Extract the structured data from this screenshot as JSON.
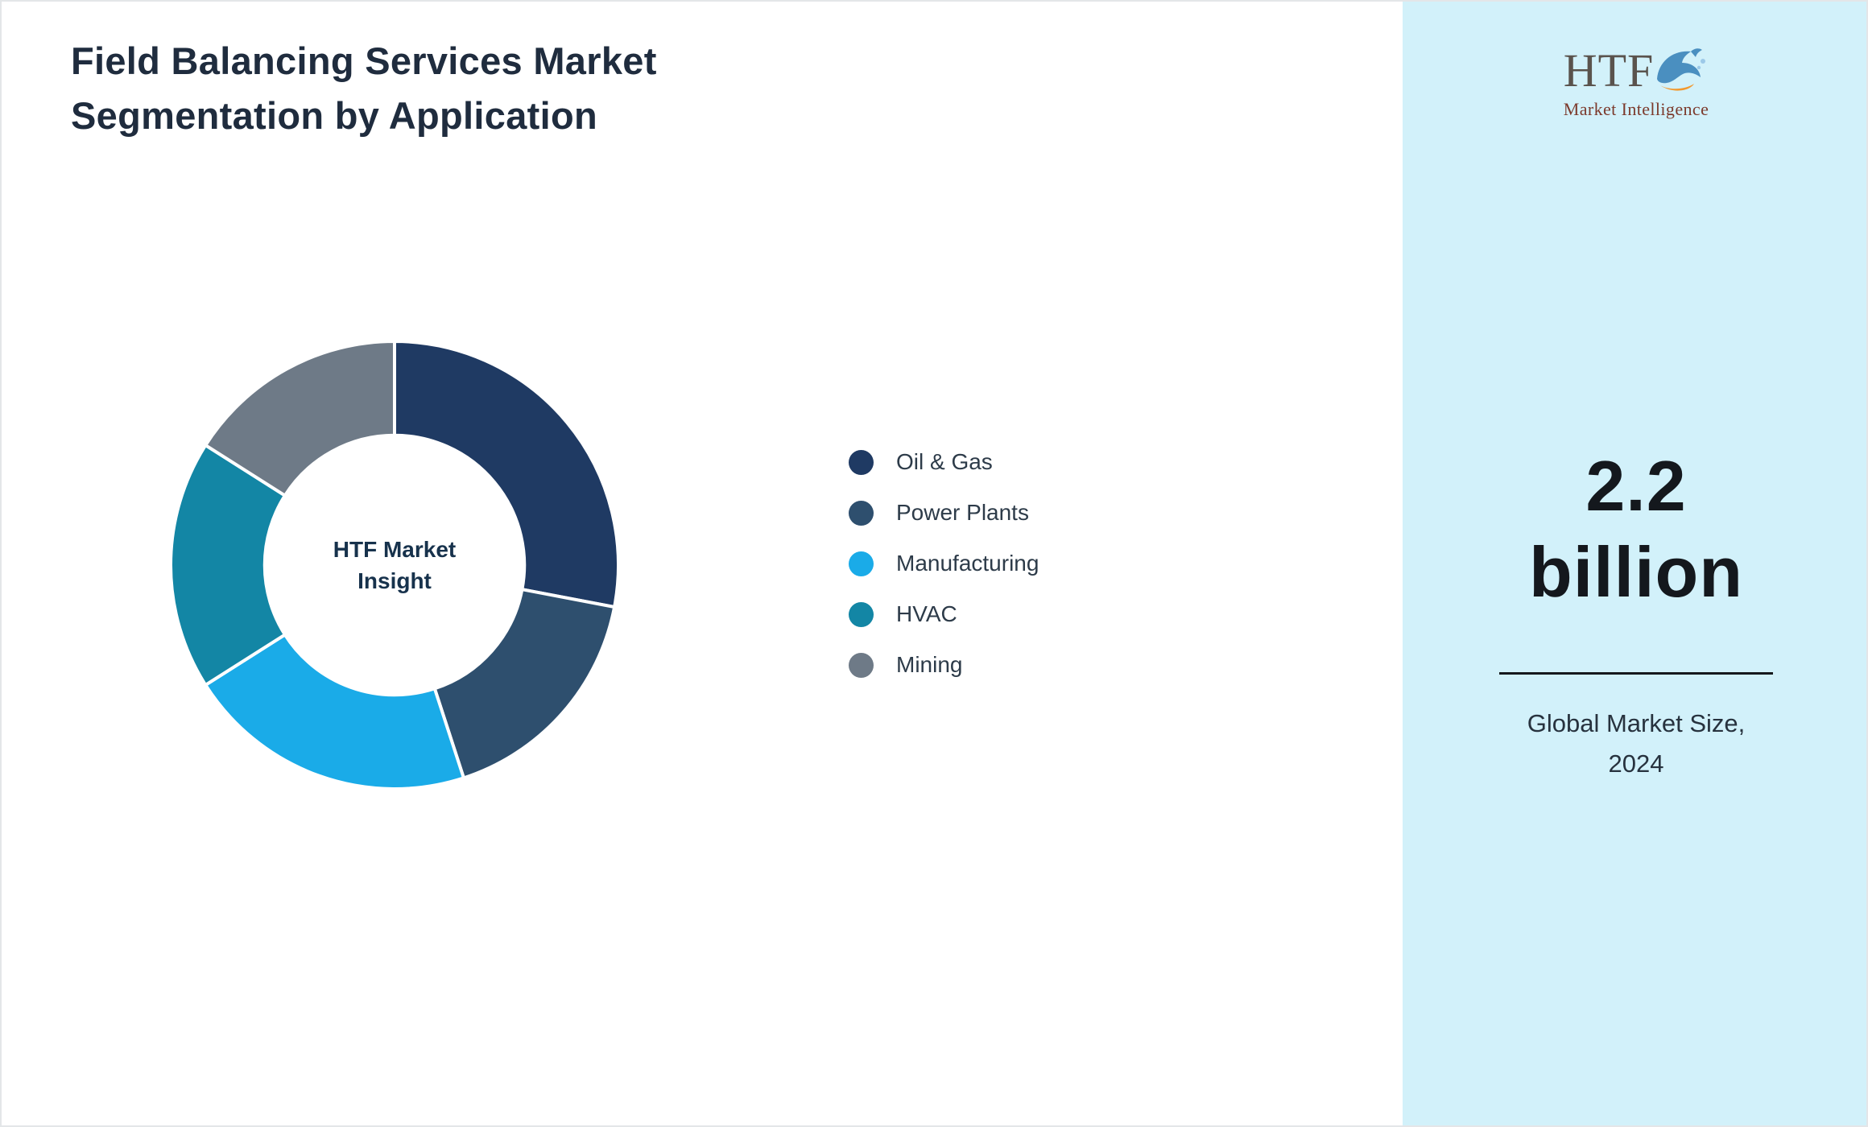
{
  "page": {
    "title_line1": "Field Balancing Services Market",
    "title_line2": "Segmentation by Application"
  },
  "chart_data": {
    "type": "pie",
    "subtype": "donut",
    "title": "Field Balancing Services Market Segmentation by Application",
    "categories": [
      "Oil & Gas",
      "Power Plants",
      "Manufacturing",
      "HVAC",
      "Mining"
    ],
    "values": [
      28,
      17,
      21,
      18,
      16
    ],
    "colors": [
      "#1f3a63",
      "#2e4f6e",
      "#1aabe8",
      "#1386a5",
      "#6e7a87"
    ],
    "start_angle_deg": 0,
    "direction": "clockwise",
    "inner_radius_ratio": 0.58,
    "slice_gap_color": "#ffffff",
    "legend_position": "right",
    "center_label": "HTF Market Insight",
    "center_label_lines": [
      "HTF Market",
      "Insight"
    ]
  },
  "sidebar": {
    "background": "#d2f1fa",
    "logo": {
      "text": "HTF",
      "subtext": "Market Intelligence",
      "dolphin_color": "#4a8fc0",
      "accent_color": "#f2992e"
    },
    "stat_value_line1": "2.2",
    "stat_value_line2": "billion",
    "caption_line1": "Global Market Size,",
    "caption_line2": "2024"
  }
}
